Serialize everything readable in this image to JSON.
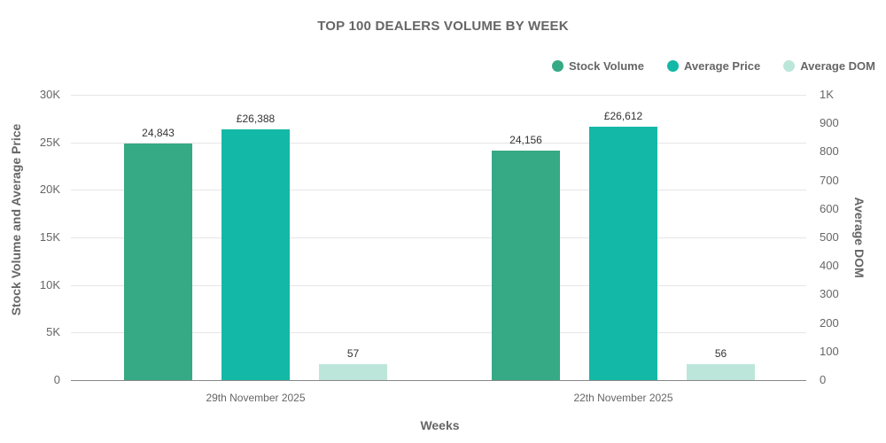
{
  "chart_data": {
    "type": "bar",
    "title": "TOP 100 DEALERS VOLUME BY WEEK",
    "xlabel": "Weeks",
    "ylabel": "Stock Volume and Average Price",
    "y2label": "Average DOM",
    "categories": [
      "29th November 2025",
      "22th November 2025"
    ],
    "series": [
      {
        "name": "Stock Volume",
        "axis": "left",
        "color": "#36a985",
        "values": [
          24843,
          24156
        ],
        "labels": [
          "24,843",
          "24,156"
        ]
      },
      {
        "name": "Average Price",
        "axis": "left",
        "color": "#14b8a6",
        "values": [
          26388,
          26612
        ],
        "labels": [
          "£26,388",
          "£26,612"
        ]
      },
      {
        "name": "Average DOM",
        "axis": "right",
        "color": "#bde6da",
        "values": [
          57,
          56
        ],
        "labels": [
          "57",
          "56"
        ]
      }
    ],
    "ylim": [
      0,
      30000
    ],
    "y2lim": [
      0,
      1000
    ],
    "yticks": [
      "0",
      "5K",
      "10K",
      "15K",
      "20K",
      "25K",
      "30K"
    ],
    "y2ticks": [
      "0",
      "100",
      "200",
      "300",
      "400",
      "500",
      "600",
      "700",
      "800",
      "900",
      "1K"
    ],
    "grid": true,
    "legend_position": "top-right"
  }
}
